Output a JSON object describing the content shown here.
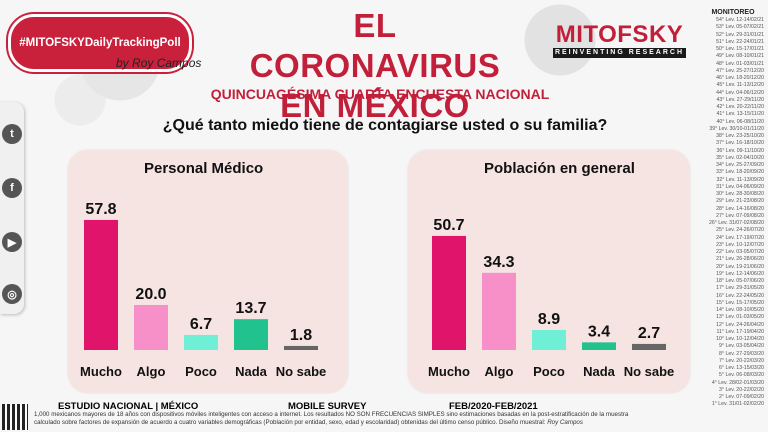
{
  "header": {
    "hashtag": "#MITOFSKYDailyTrackingPoll",
    "by": "by",
    "signature": "Roy Campos",
    "title_line1": "EL CORONAVIRUS",
    "title_line2": "EN MÉXICO",
    "subtitle": "QUINCUAGÉSIMA CUARTA ENCUESTA NACIONAL",
    "question": "¿Qué tanto miedo tiene de contagiarse usted o su familia?"
  },
  "logo": {
    "name": "MITOFSKY",
    "tagline": "REINVENTING RESEARCH"
  },
  "social": [
    "twitter-icon",
    "facebook-icon",
    "youtube-icon",
    "podcast-icon"
  ],
  "colors": {
    "brand": "#c21f3a",
    "mucho": "#e0146a",
    "algo": "#f78fc8",
    "poco": "#6ff0d6",
    "nada": "#22c28e",
    "nosabe": "#666666",
    "panel": "#f5e4e2"
  },
  "chart_data": [
    {
      "type": "bar",
      "title": "Personal Médico",
      "categories": [
        "Mucho",
        "Algo",
        "Poco",
        "Nada",
        "No sabe"
      ],
      "values": [
        57.8,
        20.0,
        6.7,
        13.7,
        1.8
      ],
      "labels": [
        "57.8",
        "20.0",
        "6.7",
        "13.7",
        "1.8"
      ],
      "ylim": [
        0,
        60
      ]
    },
    {
      "type": "bar",
      "title": "Población en general",
      "categories": [
        "Mucho",
        "Algo",
        "Poco",
        "Nada",
        "No sabe"
      ],
      "values": [
        50.7,
        34.3,
        8.9,
        3.4,
        2.7
      ],
      "labels": [
        "50.7",
        "34.3",
        "8.9",
        "3.4",
        "2.7"
      ],
      "ylim": [
        0,
        60
      ]
    }
  ],
  "monitor": {
    "title": "MONITOREO",
    "rows": [
      "54° Lev. 12-14/02/21",
      "53° Lev. 05-07/02/21",
      "52° Lev. 29-31/01/21",
      "51° Lev. 22-24/01/21",
      "50° Lev. 15-17/01/21",
      "49° Lev. 08-10/01/21",
      "48° Lev. 01-03/01/21",
      "47° Lev. 25-27/12/20",
      "46° Lev. 18-20/12/20",
      "45° Lev. 11-13/12/20",
      "44° Lev. 04-06/12/20",
      "43° Lev. 27-29/11/20",
      "42° Lev. 20-22/11/20",
      "41° Lev. 13-15/11/20",
      "40° Lev. 06-08/11/20",
      "39° Lev. 30/10-01/11/20",
      "38° Lev. 23-25/10/20",
      "37° Lev. 16-18/10/20",
      "36° Lev. 09-11/10/20",
      "35° Lev. 02-04/10/20",
      "34° Lev. 25-27/09/20",
      "33° Lev. 18-20/09/20",
      "32° Lev. 11-13/09/20",
      "31° Lev. 04-06/09/20",
      "30° Lev. 28-30/08/20",
      "29° Lev. 21-23/08/20",
      "28° Lev. 14-16/08/20",
      "27° Lev. 07-09/08/20",
      "26° Lev. 31/07-02/08/20",
      "25° Lev. 24-26/07/20",
      "24° Lev. 17-19/07/20",
      "23° Lev. 10-12/07/20",
      "22° Lev. 03-05/07/20",
      "21° Lev. 26-28/06/20",
      "20° Lev. 19-21/06/20",
      "19° Lev. 12-14/06/20",
      "18° Lev. 05-07/06/20",
      "17° Lev. 29-31/05/20",
      "16° Lev. 22-24/05/20",
      "15° Lev. 15-17/05/20",
      "14° Lev. 08-10/05/20",
      "13° Lev. 01-03/05/20",
      "12° Lev. 24-26/04/20",
      "11° Lev. 17-19/04/20",
      "10° Lev. 10-12/04/20",
      "9° Lev. 03-05/04/20",
      "8° Lev. 27-29/03/20",
      "7° Lev. 20-22/03/20",
      "6° Lev. 13-15/03/20",
      "5° Lev. 06-08/03/20",
      "4° Lev. 28/02-01/03/20",
      "3° Lev. 20-22/02/20",
      "2° Lev. 07-09/02/20",
      "1° Lev. 31/01-02/02/20"
    ]
  },
  "footer": {
    "study": "ESTUDIO NACIONAL | MÉXICO",
    "mode": "MOBILE SURVEY",
    "dates": "FEB/2020-FEB/2021",
    "note": "1,000 mexicanos mayores de 18 años con dispositivos móviles inteligentes con acceso a internet. Los resultados NO SON FRECUENCIAS SIMPLES sino estimaciones basadas en la post-estratificación de la muestra calculado sobre factores de expansión de acuerdo a cuatro variables demográficas (Población por entidad, sexo, edad y escolaridad) obtenidas del último censo público. Diseño muestral:",
    "note_signature": "Roy Campos"
  }
}
